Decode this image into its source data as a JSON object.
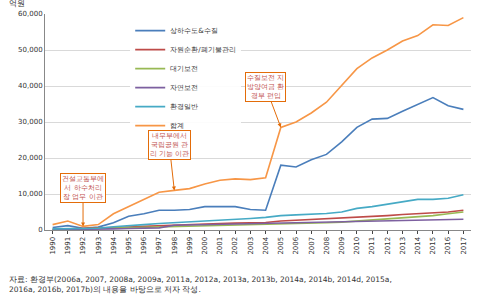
{
  "chart_data": {
    "type": "line",
    "y_label": "억원",
    "categories": [
      "1990",
      "1991",
      "1992",
      "1993",
      "1994",
      "1995",
      "1996",
      "1997",
      "1998",
      "1999",
      "2000",
      "2001",
      "2002",
      "2003",
      "2004",
      "2005",
      "2006",
      "2007",
      "2008",
      "2009",
      "2010",
      "2011",
      "2012",
      "2013",
      "2014",
      "2015",
      "2016",
      "2017"
    ],
    "series": [
      {
        "name": "상하수도&수질",
        "color": "#4a7ebb",
        "values": [
          700,
          1200,
          500,
          800,
          2000,
          3800,
          4500,
          5500,
          5500,
          5700,
          6500,
          6500,
          6500,
          5700,
          5500,
          18000,
          17500,
          19500,
          21000,
          24500,
          28500,
          30800,
          31000,
          33000,
          35000,
          36800,
          34500,
          33500
        ]
      },
      {
        "name": "자원순환/폐기물관리",
        "color": "#be4b48",
        "values": [
          200,
          300,
          300,
          400,
          600,
          800,
          1000,
          1200,
          1400,
          1500,
          1700,
          1800,
          1900,
          2000,
          2100,
          2500,
          2700,
          2800,
          3000,
          3200,
          3500,
          3800,
          4000,
          4300,
          4500,
          4700,
          5000,
          5500
        ]
      },
      {
        "name": "대기보전",
        "color": "#98b954",
        "values": [
          100,
          200,
          200,
          300,
          400,
          500,
          600,
          700,
          800,
          900,
          1000,
          1100,
          1200,
          1300,
          1400,
          1500,
          1600,
          1800,
          2000,
          2200,
          2500,
          2800,
          3000,
          3300,
          3600,
          4000,
          4500,
          5000
        ]
      },
      {
        "name": "자연보전",
        "color": "#7d60a0",
        "values": [
          100,
          100,
          100,
          200,
          300,
          400,
          500,
          600,
          1300,
          1400,
          1500,
          1500,
          1600,
          1600,
          1700,
          1800,
          1900,
          2000,
          2100,
          2200,
          2300,
          2400,
          2500,
          2600,
          2700,
          2800,
          2900,
          3000
        ]
      },
      {
        "name": "환경일반",
        "color": "#46aac5",
        "values": [
          300,
          400,
          400,
          500,
          900,
          1300,
          1500,
          1800,
          2000,
          2200,
          2500,
          2800,
          3000,
          3200,
          3500,
          4000,
          4200,
          4300,
          4600,
          5000,
          6000,
          6500,
          7200,
          8000,
          8500,
          8500,
          8800,
          9800
        ]
      },
      {
        "name": "합계",
        "color": "#f79646",
        "values": [
          1500,
          2500,
          1000,
          1500,
          4500,
          6500,
          8500,
          10500,
          11000,
          11500,
          12800,
          13800,
          14200,
          14000,
          14500,
          28500,
          30000,
          32500,
          35500,
          40000,
          44800,
          47800,
          50000,
          52500,
          54000,
          57000,
          56800,
          59000
        ]
      }
    ],
    "ylim": [
      0,
      60000
    ],
    "yticks": [
      0,
      {
        "value": 10000,
        "label": "10,000"
      },
      {
        "value": 20000,
        "label": "20,000"
      },
      {
        "value": 30000,
        "label": "30,000"
      },
      {
        "value": 40000,
        "label": "40,000"
      },
      {
        "value": 50000,
        "label": "50,000"
      },
      {
        "value": 60000,
        "label": "60,000"
      }
    ],
    "grid": true,
    "legend": "upper left",
    "annotations": [
      {
        "category": "1992",
        "series": "합계",
        "lines": [
          "건설교통부에",
          "서 하수처리",
          "장 업무 이관"
        ]
      },
      {
        "category": "1998",
        "series": "합계",
        "lines": [
          "내무부에서",
          "국립공원 관",
          "리 기능 이관"
        ]
      },
      {
        "category": "2005",
        "series": "합계",
        "lines": [
          "수질보전 지",
          "방양여금 환",
          "경부 편입"
        ]
      }
    ],
    "source": [
      "자료: 환경부(2006a, 2007, 2008a, 2009a, 2011a, 2012a, 2013a, 2013b, 2014a, 2014b, 2014d, 2015a,",
      "2016a, 2016b, 2017b)의 내용을 바탕으로 저자 작성."
    ]
  }
}
